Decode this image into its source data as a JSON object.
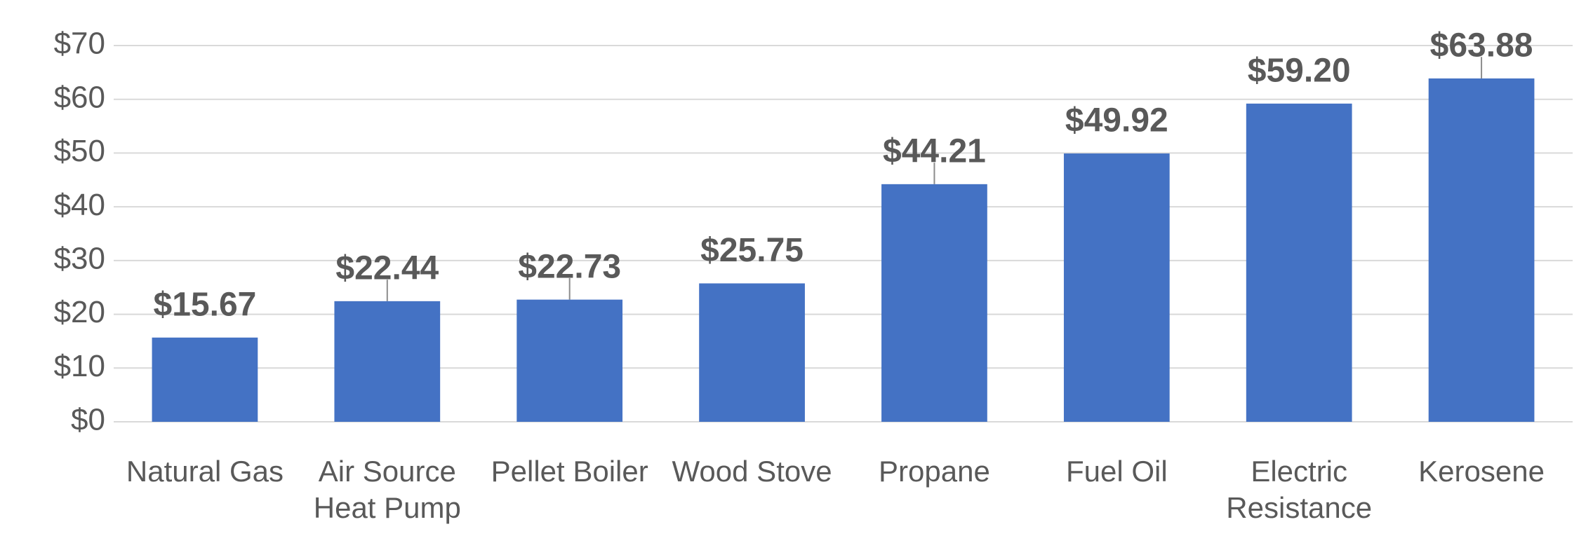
{
  "chart_data": {
    "type": "bar",
    "categories": [
      "Natural Gas",
      "Air Source Heat Pump",
      "Pellet Boiler",
      "Wood Stove",
      "Propane",
      "Fuel Oil",
      "Electric Resistance",
      "Kerosene"
    ],
    "values": [
      15.67,
      22.44,
      22.73,
      25.75,
      44.21,
      49.92,
      59.2,
      63.88
    ],
    "value_labels": [
      "$15.67",
      "$22.44",
      "$22.73",
      "$25.75",
      "$44.21",
      "$49.92",
      "$59.20",
      "$63.88"
    ],
    "errors": [
      null,
      4,
      4,
      null,
      4,
      null,
      null,
      4
    ],
    "color": "#4472c4",
    "ylim": [
      0,
      70
    ],
    "yticks": [
      {
        "value": 0,
        "label": "$0"
      },
      {
        "value": 10,
        "label": "$10"
      },
      {
        "value": 20,
        "label": "$20"
      },
      {
        "value": 30,
        "label": "$30"
      },
      {
        "value": 40,
        "label": "$40"
      },
      {
        "value": 50,
        "label": "$50"
      },
      {
        "value": 60,
        "label": "$60"
      },
      {
        "value": 70,
        "label": "$70"
      }
    ],
    "grid": true
  }
}
